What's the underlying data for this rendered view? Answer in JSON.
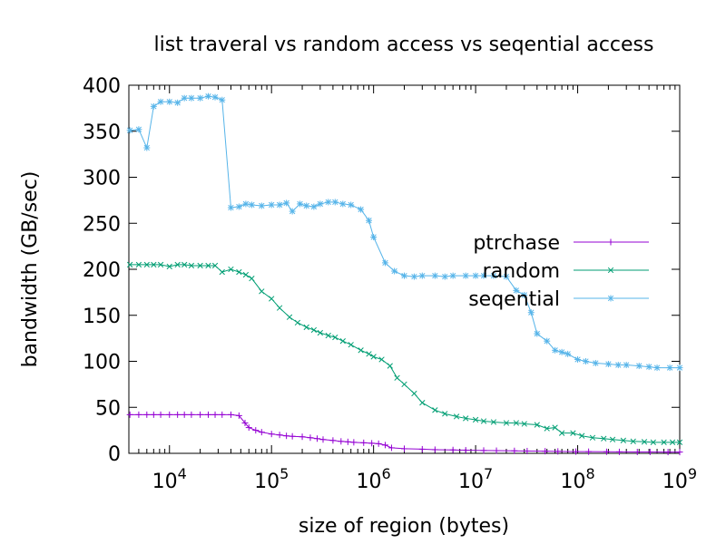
{
  "chart_data": {
    "type": "line",
    "title": "list traveral vs random access vs seqential access",
    "xlabel": "size of region (bytes)",
    "ylabel": "bandwidth (GB/sec)",
    "xscale": "log",
    "xlim": [
      4000,
      1000000000
    ],
    "ylim": [
      0,
      400
    ],
    "legend_position": "right",
    "grid": false,
    "y_ticks": [
      {
        "value": 0,
        "label": "0"
      },
      {
        "value": 50,
        "label": "50"
      },
      {
        "value": 100,
        "label": "100"
      },
      {
        "value": 150,
        "label": "150"
      },
      {
        "value": 200,
        "label": "200"
      },
      {
        "value": 250,
        "label": "250"
      },
      {
        "value": 300,
        "label": "300"
      },
      {
        "value": 350,
        "label": "350"
      },
      {
        "value": 400,
        "label": "400"
      }
    ],
    "x_ticks": [
      {
        "value": 10000,
        "base": "10",
        "exp": "4"
      },
      {
        "value": 100000,
        "base": "10",
        "exp": "5"
      },
      {
        "value": 1000000,
        "base": "10",
        "exp": "6"
      },
      {
        "value": 10000000,
        "base": "10",
        "exp": "7"
      },
      {
        "value": 100000000,
        "base": "10",
        "exp": "8"
      },
      {
        "value": 1000000000,
        "base": "10",
        "exp": "9"
      }
    ],
    "series": [
      {
        "name": "ptrchase",
        "color": "#9400d3",
        "marker": "plus",
        "points": [
          [
            4096,
            42
          ],
          [
            5000,
            42
          ],
          [
            6000,
            42
          ],
          [
            7000,
            42
          ],
          [
            8200,
            42
          ],
          [
            10000,
            42
          ],
          [
            12000,
            42
          ],
          [
            14000,
            42
          ],
          [
            16400,
            42
          ],
          [
            20000,
            42
          ],
          [
            24000,
            42
          ],
          [
            28000,
            42
          ],
          [
            32800,
            42
          ],
          [
            40000,
            42
          ],
          [
            48000,
            41
          ],
          [
            55000,
            33
          ],
          [
            60000,
            28
          ],
          [
            70000,
            25
          ],
          [
            80000,
            23
          ],
          [
            100000,
            21
          ],
          [
            120000,
            20
          ],
          [
            140000,
            19
          ],
          [
            160000,
            18.5
          ],
          [
            200000,
            18
          ],
          [
            240000,
            17
          ],
          [
            280000,
            16
          ],
          [
            320000,
            15
          ],
          [
            400000,
            14
          ],
          [
            480000,
            13
          ],
          [
            560000,
            12.5
          ],
          [
            640000,
            12
          ],
          [
            800000,
            11.5
          ],
          [
            960000,
            11
          ],
          [
            1120000,
            10.5
          ],
          [
            1300000,
            9
          ],
          [
            1500000,
            6
          ],
          [
            2000000,
            5
          ],
          [
            3000000,
            4.5
          ],
          [
            4000000,
            4
          ],
          [
            6000000,
            3.7
          ],
          [
            8000000,
            3.4
          ],
          [
            12000000,
            3.1
          ],
          [
            16000000,
            2.9
          ],
          [
            24000000,
            2.7
          ],
          [
            32000000,
            2.5
          ],
          [
            48000000,
            2.3
          ],
          [
            64000000,
            2.1
          ],
          [
            96000000,
            1.9
          ],
          [
            128000000,
            1.8
          ],
          [
            192000000,
            1.7
          ],
          [
            256000000,
            1.6
          ],
          [
            384000000,
            1.5
          ],
          [
            512000000,
            1.5
          ],
          [
            768000000,
            1.4
          ],
          [
            1000000000,
            1.4
          ]
        ]
      },
      {
        "name": "random",
        "color": "#009e73",
        "marker": "x",
        "points": [
          [
            4096,
            205
          ],
          [
            5000,
            205
          ],
          [
            6000,
            205
          ],
          [
            7000,
            205
          ],
          [
            8200,
            205
          ],
          [
            10000,
            203
          ],
          [
            12000,
            205
          ],
          [
            14000,
            205
          ],
          [
            16400,
            204
          ],
          [
            20000,
            204
          ],
          [
            24000,
            204
          ],
          [
            28000,
            204
          ],
          [
            32800,
            197
          ],
          [
            40000,
            200
          ],
          [
            48000,
            197
          ],
          [
            56000,
            194
          ],
          [
            64000,
            190
          ],
          [
            80000,
            176
          ],
          [
            100000,
            168
          ],
          [
            120000,
            158
          ],
          [
            150000,
            148
          ],
          [
            180000,
            142
          ],
          [
            220000,
            137
          ],
          [
            260000,
            134
          ],
          [
            300000,
            131
          ],
          [
            360000,
            128
          ],
          [
            420000,
            126
          ],
          [
            500000,
            122
          ],
          [
            600000,
            118
          ],
          [
            750000,
            112
          ],
          [
            900000,
            108
          ],
          [
            1000000,
            105
          ],
          [
            1200000,
            102
          ],
          [
            1450000,
            95
          ],
          [
            1700000,
            82
          ],
          [
            2000000,
            75
          ],
          [
            2500000,
            65
          ],
          [
            3000000,
            55
          ],
          [
            4000000,
            47
          ],
          [
            5000000,
            43
          ],
          [
            6500000,
            40
          ],
          [
            8000000,
            38
          ],
          [
            10000000,
            36.5
          ],
          [
            12000000,
            35
          ],
          [
            15000000,
            34
          ],
          [
            20000000,
            33
          ],
          [
            25000000,
            33
          ],
          [
            30000000,
            32
          ],
          [
            40000000,
            31
          ],
          [
            50000000,
            27
          ],
          [
            60000000,
            28
          ],
          [
            70000000,
            22
          ],
          [
            90000000,
            22
          ],
          [
            110000000,
            19
          ],
          [
            140000000,
            17
          ],
          [
            180000000,
            16
          ],
          [
            220000000,
            15
          ],
          [
            280000000,
            14
          ],
          [
            350000000,
            13
          ],
          [
            450000000,
            12.5
          ],
          [
            550000000,
            12
          ],
          [
            700000000,
            12
          ],
          [
            850000000,
            12
          ],
          [
            1000000000,
            12
          ]
        ]
      },
      {
        "name": "seqential",
        "color": "#56b4e9",
        "marker": "star",
        "points": [
          [
            4096,
            351
          ],
          [
            5000,
            352
          ],
          [
            6000,
            332
          ],
          [
            7000,
            377
          ],
          [
            8200,
            382
          ],
          [
            10000,
            382
          ],
          [
            12000,
            381
          ],
          [
            14000,
            386
          ],
          [
            16400,
            386
          ],
          [
            20000,
            386
          ],
          [
            24000,
            388
          ],
          [
            28000,
            387
          ],
          [
            32800,
            384
          ],
          [
            40000,
            267
          ],
          [
            48000,
            268
          ],
          [
            56000,
            271
          ],
          [
            64000,
            270
          ],
          [
            80000,
            269
          ],
          [
            100000,
            270
          ],
          [
            120000,
            270
          ],
          [
            140000,
            272
          ],
          [
            160000,
            263
          ],
          [
            190000,
            271
          ],
          [
            220000,
            269
          ],
          [
            260000,
            268
          ],
          [
            300000,
            271
          ],
          [
            360000,
            273
          ],
          [
            420000,
            273
          ],
          [
            500000,
            271
          ],
          [
            600000,
            270
          ],
          [
            750000,
            265
          ],
          [
            900000,
            253
          ],
          [
            1000000,
            235
          ],
          [
            1300000,
            207
          ],
          [
            1600000,
            198
          ],
          [
            2000000,
            193
          ],
          [
            2500000,
            192
          ],
          [
            3000000,
            193
          ],
          [
            4000000,
            193
          ],
          [
            5000000,
            192
          ],
          [
            6000000,
            193
          ],
          [
            8000000,
            193
          ],
          [
            10000000,
            193
          ],
          [
            12000000,
            193
          ],
          [
            15000000,
            193
          ],
          [
            20000000,
            192
          ],
          [
            25000000,
            177
          ],
          [
            30000000,
            172
          ],
          [
            35000000,
            153
          ],
          [
            40000000,
            130
          ],
          [
            50000000,
            122
          ],
          [
            60000000,
            112
          ],
          [
            70000000,
            110
          ],
          [
            80000000,
            108
          ],
          [
            100000000,
            102
          ],
          [
            120000000,
            100
          ],
          [
            150000000,
            98
          ],
          [
            200000000,
            97
          ],
          [
            250000000,
            96
          ],
          [
            300000000,
            96
          ],
          [
            400000000,
            95
          ],
          [
            500000000,
            94
          ],
          [
            600000000,
            93
          ],
          [
            800000000,
            93
          ],
          [
            1000000000,
            93
          ]
        ]
      }
    ]
  }
}
